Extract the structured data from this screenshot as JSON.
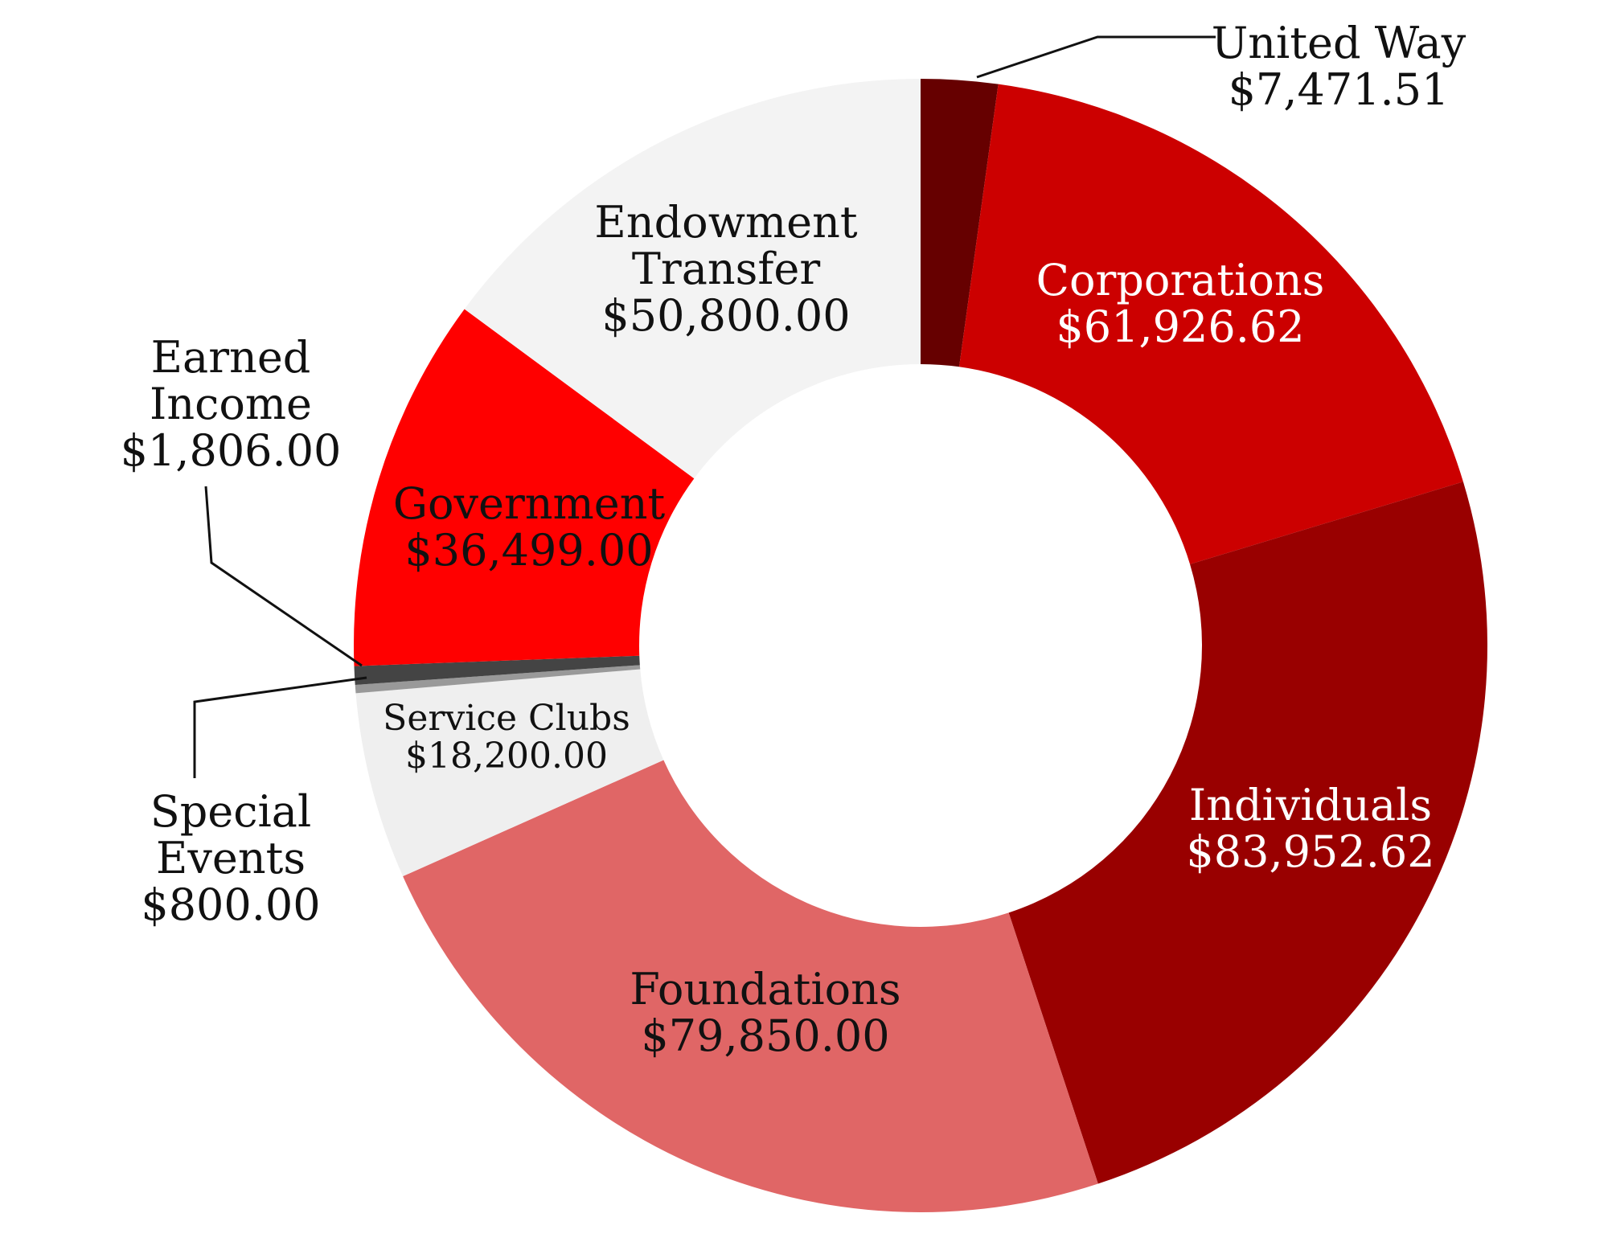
{
  "chart_data": {
    "type": "pie",
    "variant": "donut",
    "title": "",
    "start": "12 o'clock",
    "direction": "clockwise",
    "slices": [
      {
        "label": "United Way",
        "value": 7471.51,
        "value_label": "$7,471.51",
        "color": "#660000",
        "label_color": "#111111"
      },
      {
        "label": "Corporations",
        "value": 61926.62,
        "value_label": "$61,926.62",
        "color": "#cc0000",
        "label_color": "#ffffff"
      },
      {
        "label": "Individuals",
        "value": 83952.62,
        "value_label": "$83,952.62",
        "color": "#990000",
        "label_color": "#ffffff"
      },
      {
        "label": "Foundations",
        "value": 79850.0,
        "value_label": "$79,850.00",
        "color": "#e06666",
        "label_color": "#111111"
      },
      {
        "label": "Service Clubs",
        "value": 18200.0,
        "value_label": "$18,200.00",
        "color": "#efefef",
        "label_color": "#111111"
      },
      {
        "label": "Special Events",
        "value": 800.0,
        "value_label": "$800.00",
        "color": "#999999",
        "label_color": "#111111"
      },
      {
        "label": "Earned Income",
        "value": 1806.0,
        "value_label": "$1,806.00",
        "color": "#444444",
        "label_color": "#111111"
      },
      {
        "label": "Government",
        "value": 36499.0,
        "value_label": "$36,499.00",
        "color": "#ff0000",
        "label_color": "#111111"
      },
      {
        "label": "Endowment Transfer",
        "value": 50800.0,
        "value_label": "$50,800.00",
        "color": "#f3f3f3",
        "label_color": "#111111"
      }
    ]
  }
}
